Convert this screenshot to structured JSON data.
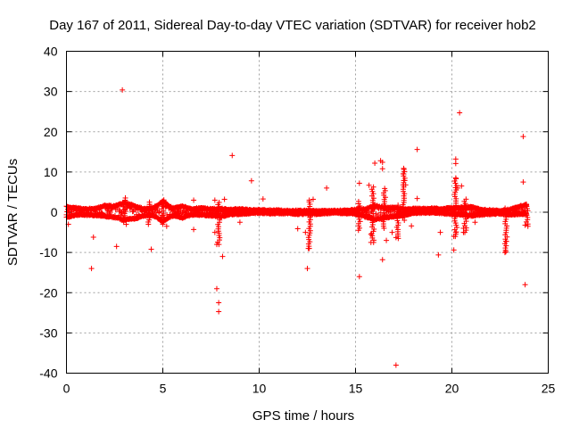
{
  "chart_data": {
    "type": "scatter",
    "title": "Day 167 of 2011, Sidereal Day-to-day VTEC variation (SDTVAR) for receiver hob2",
    "xlabel": "GPS time / hours",
    "ylabel": "SDTVAR / TECUs",
    "xlim": [
      0,
      25
    ],
    "ylim": [
      -40,
      40
    ],
    "xticks": [
      0,
      5,
      10,
      15,
      20,
      25
    ],
    "yticks": [
      -40,
      -30,
      -20,
      -10,
      0,
      10,
      20,
      30,
      40
    ],
    "xtick_labels": [
      "0",
      "5",
      "10",
      "15",
      "20",
      "25"
    ],
    "ytick_labels": [
      "-40",
      "-30",
      "-20",
      "-10",
      "0",
      "10",
      "20",
      "30",
      "40"
    ],
    "grid": true,
    "marker": "+",
    "color": "#ff0000",
    "band": {
      "x": [
        0.0,
        0.5,
        1.0,
        1.5,
        2.0,
        2.5,
        3.0,
        3.5,
        4.0,
        4.5,
        5.0,
        5.5,
        6.0,
        6.5,
        7.0,
        7.5,
        8.0,
        8.5,
        9.0,
        9.5,
        10.0,
        10.5,
        11.0,
        11.5,
        12.0,
        12.5,
        13.0,
        13.5,
        14.0,
        14.5,
        15.0,
        15.5,
        16.0,
        16.5,
        17.0,
        17.5,
        18.0,
        18.5,
        19.0,
        19.5,
        20.0,
        20.5,
        21.0,
        21.5,
        22.0,
        22.5,
        23.0,
        23.5,
        23.9
      ],
      "upper": [
        1.5,
        1.2,
        0.9,
        1.0,
        1.8,
        1.6,
        2.5,
        1.8,
        1.0,
        1.2,
        2.8,
        1.2,
        1.6,
        1.0,
        1.2,
        0.9,
        1.0,
        0.8,
        0.9,
        0.7,
        0.7,
        0.6,
        0.6,
        0.5,
        0.5,
        0.5,
        0.4,
        0.5,
        0.5,
        0.6,
        0.8,
        0.9,
        1.8,
        1.2,
        1.3,
        0.9,
        1.0,
        1.0,
        1.1,
        1.0,
        1.2,
        1.3,
        1.5,
        0.8,
        0.6,
        0.5,
        0.8,
        1.6,
        2.0
      ],
      "lower": [
        -1.5,
        -0.8,
        -0.8,
        -0.9,
        -1.2,
        -1.4,
        -2.0,
        -1.8,
        -1.0,
        -0.9,
        -2.5,
        -1.0,
        -1.5,
        -0.8,
        -0.8,
        -1.0,
        -1.2,
        -0.7,
        -0.6,
        -0.4,
        -0.3,
        -0.4,
        -0.4,
        -0.4,
        -0.6,
        -0.5,
        -0.6,
        -0.4,
        -0.3,
        -0.4,
        -0.5,
        -1.2,
        -2.0,
        -1.5,
        -1.2,
        -0.8,
        -0.4,
        -0.3,
        -0.3,
        -0.4,
        -0.6,
        -0.8,
        -1.0,
        -0.8,
        -0.6,
        -0.5,
        -0.7,
        -0.6,
        -0.5
      ]
    },
    "outliers": [
      {
        "x": 2.9,
        "y": 30.4
      },
      {
        "x": 8.6,
        "y": 14.1
      },
      {
        "x": 9.6,
        "y": 7.8
      },
      {
        "x": 10.2,
        "y": 3.3
      },
      {
        "x": 13.5,
        "y": 6.0
      },
      {
        "x": 15.2,
        "y": 7.2
      },
      {
        "x": 16.0,
        "y": 12.2
      },
      {
        "x": 16.3,
        "y": 12.8
      },
      {
        "x": 16.4,
        "y": 12.4
      },
      {
        "x": 16.4,
        "y": 10.8
      },
      {
        "x": 17.5,
        "y": 10.9
      },
      {
        "x": 17.5,
        "y": 9.5
      },
      {
        "x": 17.5,
        "y": 7.9
      },
      {
        "x": 17.6,
        "y": 6.8
      },
      {
        "x": 18.2,
        "y": 15.6
      },
      {
        "x": 18.2,
        "y": 3.4
      },
      {
        "x": 20.2,
        "y": 13.2
      },
      {
        "x": 20.2,
        "y": 12.1
      },
      {
        "x": 20.2,
        "y": 8.5
      },
      {
        "x": 20.4,
        "y": 24.7
      },
      {
        "x": 20.5,
        "y": 6.5
      },
      {
        "x": 20.3,
        "y": 6.0
      },
      {
        "x": 23.7,
        "y": 18.8
      },
      {
        "x": 23.7,
        "y": 7.5
      },
      {
        "x": 7.7,
        "y": 3.0
      },
      {
        "x": 8.2,
        "y": 3.2
      },
      {
        "x": 6.6,
        "y": 3.0
      },
      {
        "x": 15.7,
        "y": 6.7
      },
      {
        "x": 12.6,
        "y": 3.0
      },
      {
        "x": 12.8,
        "y": 3.2
      },
      {
        "x": 0.1,
        "y": -3.0
      },
      {
        "x": 1.4,
        "y": -6.2
      },
      {
        "x": 1.3,
        "y": -14.0
      },
      {
        "x": 2.6,
        "y": -8.5
      },
      {
        "x": 4.4,
        "y": -9.2
      },
      {
        "x": 7.8,
        "y": -8.0
      },
      {
        "x": 7.8,
        "y": -19.0
      },
      {
        "x": 7.9,
        "y": -22.5
      },
      {
        "x": 7.9,
        "y": -24.7
      },
      {
        "x": 8.1,
        "y": -11.0
      },
      {
        "x": 7.7,
        "y": -5.0
      },
      {
        "x": 12.5,
        "y": -14.0
      },
      {
        "x": 12.6,
        "y": -9.0
      },
      {
        "x": 12.0,
        "y": -4.1
      },
      {
        "x": 12.4,
        "y": -5.0
      },
      {
        "x": 15.2,
        "y": -16.0
      },
      {
        "x": 15.8,
        "y": -7.5
      },
      {
        "x": 15.8,
        "y": -5.5
      },
      {
        "x": 16.4,
        "y": -11.8
      },
      {
        "x": 16.6,
        "y": -7.0
      },
      {
        "x": 17.1,
        "y": -38.0
      },
      {
        "x": 17.1,
        "y": -6.3
      },
      {
        "x": 16.9,
        "y": -5.0
      },
      {
        "x": 19.3,
        "y": -10.6
      },
      {
        "x": 19.4,
        "y": -5.0
      },
      {
        "x": 20.1,
        "y": -9.4
      },
      {
        "x": 20.1,
        "y": -6.0
      },
      {
        "x": 20.2,
        "y": -5.0
      },
      {
        "x": 20.6,
        "y": -5.0
      },
      {
        "x": 20.6,
        "y": -4.0
      },
      {
        "x": 22.8,
        "y": -9.8
      },
      {
        "x": 22.8,
        "y": -7.2
      },
      {
        "x": 23.8,
        "y": -18.0
      },
      {
        "x": 23.8,
        "y": -3.2
      },
      {
        "x": 6.6,
        "y": -4.3
      },
      {
        "x": 9.0,
        "y": -2.5
      },
      {
        "x": 3.1,
        "y": -3.0
      },
      {
        "x": 5.2,
        "y": -3.5
      },
      {
        "x": 17.9,
        "y": -3.4
      },
      {
        "x": 21.2,
        "y": -2.5
      }
    ],
    "spikes": [
      {
        "x": 3.0,
        "y_min": -2.5,
        "y_max": 4.0
      },
      {
        "x": 4.3,
        "y_min": -3.0,
        "y_max": 2.5
      },
      {
        "x": 5.0,
        "y_min": -3.0,
        "y_max": 3.5
      },
      {
        "x": 7.9,
        "y_min": -8.0,
        "y_max": 2.5
      },
      {
        "x": 12.6,
        "y_min": -9.0,
        "y_max": 3.0
      },
      {
        "x": 15.2,
        "y_min": -4.5,
        "y_max": 3.0
      },
      {
        "x": 15.9,
        "y_min": -7.5,
        "y_max": 6.5
      },
      {
        "x": 16.5,
        "y_min": -4.0,
        "y_max": 6.0
      },
      {
        "x": 17.2,
        "y_min": -6.5,
        "y_max": 2.0
      },
      {
        "x": 17.5,
        "y_min": -2.0,
        "y_max": 11.0
      },
      {
        "x": 20.2,
        "y_min": -6.0,
        "y_max": 8.5
      },
      {
        "x": 20.7,
        "y_min": -5.0,
        "y_max": 3.5
      },
      {
        "x": 22.8,
        "y_min": -10.0,
        "y_max": 1.5
      },
      {
        "x": 23.9,
        "y_min": -3.5,
        "y_max": 2.5
      }
    ]
  }
}
